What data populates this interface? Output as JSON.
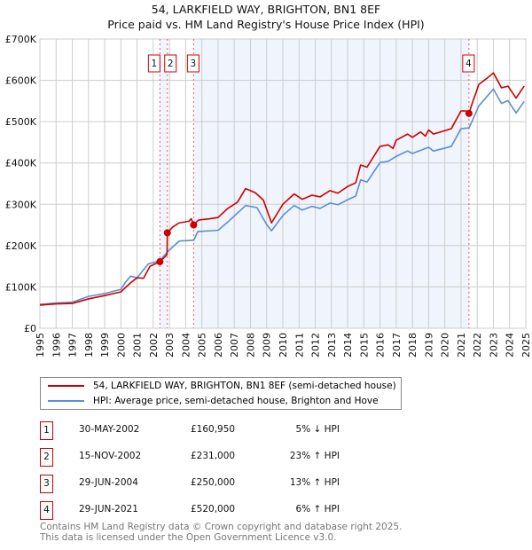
{
  "title": "54, LARKFIELD WAY, BRIGHTON, BN1 8EF",
  "subtitle": "Price paid vs. HM Land Registry's House Price Index (HPI)",
  "colors": {
    "property": "#cc0000",
    "hpi": "#5b8fd0",
    "shade": "#f0f4fc"
  },
  "chart_data": {
    "type": "line",
    "title": "54, LARKFIELD WAY, BRIGHTON, BN1 8EF",
    "xlim": [
      1995,
      2025
    ],
    "ylim": [
      0,
      700000
    ],
    "ytick_labels": [
      "£0",
      "£100K",
      "£200K",
      "£300K",
      "£400K",
      "£500K",
      "£600K",
      "£700K"
    ],
    "yticks": [
      0,
      100000,
      200000,
      300000,
      400000,
      500000,
      600000,
      700000
    ],
    "xtick_labels": [
      "1995",
      "1996",
      "1997",
      "1998",
      "1999",
      "2000",
      "2001",
      "2002",
      "2003",
      "2004",
      "2005",
      "2006",
      "2007",
      "2008",
      "2009",
      "2010",
      "2011",
      "2012",
      "2013",
      "2014",
      "2015",
      "2016",
      "2017",
      "2018",
      "2019",
      "2020",
      "2021",
      "2022",
      "2023",
      "2024",
      "2025"
    ],
    "grid": true,
    "shaded_ranges": [
      [
        2002.41,
        2002.87
      ],
      [
        2004.49,
        2021.49
      ]
    ],
    "series": [
      {
        "name": "54, LARKFIELD WAY, BRIGHTON, BN1 8EF (semi-detached house)",
        "points": [
          [
            1995,
            56
          ],
          [
            1996,
            59
          ],
          [
            1997,
            60
          ],
          [
            1998,
            71
          ],
          [
            1999,
            79
          ],
          [
            2000,
            88
          ],
          [
            2000.6,
            110
          ],
          [
            2001,
            122
          ],
          [
            2001.4,
            121
          ],
          [
            2001.8,
            150
          ],
          [
            2002.41,
            160.95
          ],
          [
            2002.85,
            178
          ],
          [
            2002.87,
            231
          ],
          [
            2003.2,
            245
          ],
          [
            2003.6,
            255
          ],
          [
            2004.2,
            259
          ],
          [
            2004.35,
            265
          ],
          [
            2004.49,
            250
          ],
          [
            2004.8,
            262
          ],
          [
            2005.5,
            265
          ],
          [
            2006,
            268
          ],
          [
            2006.6,
            290
          ],
          [
            2007.2,
            305
          ],
          [
            2007.7,
            338
          ],
          [
            2008.3,
            328
          ],
          [
            2008.8,
            310
          ],
          [
            2009.3,
            255
          ],
          [
            2010,
            300
          ],
          [
            2010.7,
            325
          ],
          [
            2011.2,
            312
          ],
          [
            2011.8,
            322
          ],
          [
            2012.3,
            318
          ],
          [
            2012.9,
            333
          ],
          [
            2013.4,
            327
          ],
          [
            2014,
            343
          ],
          [
            2014.5,
            352
          ],
          [
            2014.8,
            395
          ],
          [
            2015.2,
            390
          ],
          [
            2016,
            440
          ],
          [
            2016.5,
            444
          ],
          [
            2016.8,
            435
          ],
          [
            2017,
            455
          ],
          [
            2017.7,
            470
          ],
          [
            2018,
            462
          ],
          [
            2018.5,
            475
          ],
          [
            2018.8,
            465
          ],
          [
            2019,
            480
          ],
          [
            2019.3,
            470
          ],
          [
            2019.9,
            477
          ],
          [
            2020.4,
            483
          ],
          [
            2021,
            526
          ],
          [
            2021.3,
            526
          ],
          [
            2021.49,
            520
          ],
          [
            2021.7,
            545
          ],
          [
            2022.1,
            590
          ],
          [
            2022.6,
            605
          ],
          [
            2023,
            618
          ],
          [
            2023.5,
            582
          ],
          [
            2023.9,
            586
          ],
          [
            2024.4,
            557
          ],
          [
            2024.9,
            586
          ]
        ]
      },
      {
        "name": "HPI: Average price, semi-detached house, Brighton and Hove",
        "points": [
          [
            1995,
            58
          ],
          [
            1996,
            61
          ],
          [
            1997,
            63
          ],
          [
            1998,
            77
          ],
          [
            1999,
            84
          ],
          [
            2000,
            94
          ],
          [
            2000.3,
            112
          ],
          [
            2000.6,
            126
          ],
          [
            2001,
            122
          ],
          [
            2001.7,
            156
          ],
          [
            2002.4,
            163
          ],
          [
            2002.9,
            186
          ],
          [
            2003.6,
            211
          ],
          [
            2004.5,
            213
          ],
          [
            2004.75,
            234
          ],
          [
            2006,
            237
          ],
          [
            2006.6,
            257
          ],
          [
            2007.7,
            297
          ],
          [
            2008.4,
            292
          ],
          [
            2009,
            251
          ],
          [
            2009.3,
            236
          ],
          [
            2010.05,
            275
          ],
          [
            2010.7,
            297
          ],
          [
            2011.2,
            286
          ],
          [
            2011.8,
            295
          ],
          [
            2012.3,
            290
          ],
          [
            2012.9,
            303
          ],
          [
            2013.4,
            299
          ],
          [
            2014,
            311
          ],
          [
            2014.5,
            320
          ],
          [
            2014.8,
            359
          ],
          [
            2015.2,
            354
          ],
          [
            2016,
            401
          ],
          [
            2016.5,
            404
          ],
          [
            2017,
            416
          ],
          [
            2017.7,
            429
          ],
          [
            2018,
            423
          ],
          [
            2019,
            438
          ],
          [
            2019.3,
            429
          ],
          [
            2019.9,
            435
          ],
          [
            2020.4,
            440
          ],
          [
            2021,
            483
          ],
          [
            2021.5,
            485
          ],
          [
            2022.1,
            538
          ],
          [
            2023,
            579
          ],
          [
            2023.5,
            544
          ],
          [
            2023.9,
            551
          ],
          [
            2024.4,
            521
          ],
          [
            2024.9,
            549
          ]
        ]
      }
    ],
    "sales": [
      {
        "n": "1",
        "x": 2002.41,
        "y": 160950
      },
      {
        "n": "2",
        "x": 2002.87,
        "y": 231000
      },
      {
        "n": "3",
        "x": 2004.49,
        "y": 250000
      },
      {
        "n": "4",
        "x": 2021.49,
        "y": 520000
      }
    ]
  },
  "legend": {
    "property": "54, LARKFIELD WAY, BRIGHTON, BN1 8EF (semi-detached house)",
    "hpi": "HPI: Average price, semi-detached house, Brighton and Hove"
  },
  "table": [
    {
      "n": "1",
      "date": "30-MAY-2002",
      "price": "£160,950",
      "hpi": "5% ↓ HPI"
    },
    {
      "n": "2",
      "date": "15-NOV-2002",
      "price": "£231,000",
      "hpi": "23% ↑ HPI"
    },
    {
      "n": "3",
      "date": "29-JUN-2004",
      "price": "£250,000",
      "hpi": "13% ↑ HPI"
    },
    {
      "n": "4",
      "date": "29-JUN-2021",
      "price": "£520,000",
      "hpi": "6% ↑ HPI"
    }
  ],
  "footer": {
    "line1": "Contains HM Land Registry data © Crown copyright and database right 2025.",
    "line2": "This data is licensed under the Open Government Licence v3.0."
  }
}
